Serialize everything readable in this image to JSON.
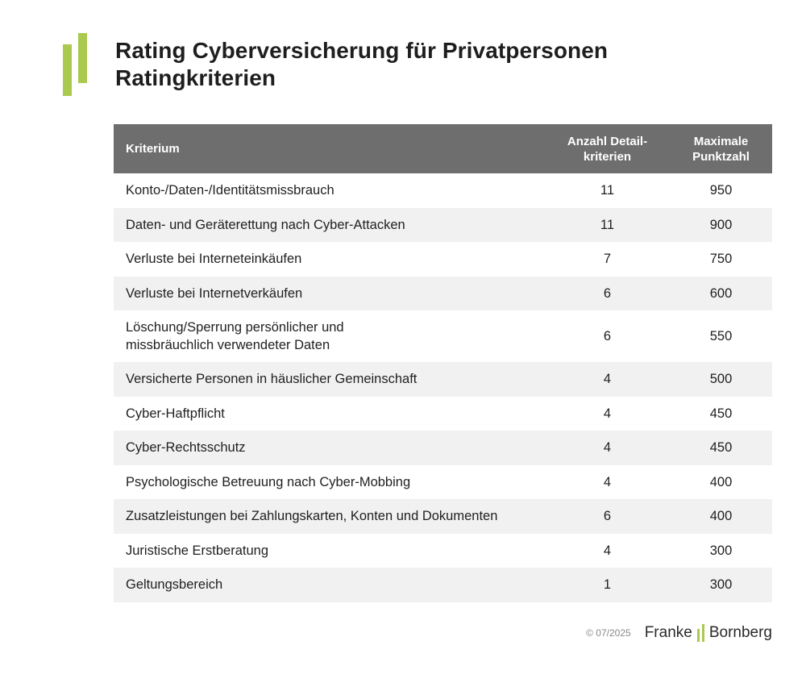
{
  "header": {
    "title_line1": "Rating Cyberversicherung für Privatpersonen",
    "title_line2": "Ratingkriterien",
    "accent_color": "#a9c94f"
  },
  "table": {
    "columns": {
      "criterion": "Kriterium",
      "detail_count_line1": "Anzahl Detail-",
      "detail_count_line2": "kriterien",
      "max_points_line1": "Maximale",
      "max_points_line2": "Punktzahl"
    },
    "header_color": "#6e6e6e",
    "rows": [
      {
        "criterion": "Konto-/Daten-/Identitätsmissbrauch",
        "details": "11",
        "points": "950"
      },
      {
        "criterion": "Daten- und Geräterettung nach Cyber-Attacken",
        "details": "11",
        "points": "900"
      },
      {
        "criterion": "Verluste bei Interneteinkäufen",
        "details": "7",
        "points": "750"
      },
      {
        "criterion": "Verluste bei Internetverkäufen",
        "details": "6",
        "points": "600"
      },
      {
        "criterion_line1": "Löschung/Sperrung persönlicher und",
        "criterion_line2": "missbräuchlich verwendeter Daten",
        "details": "6",
        "points": "550"
      },
      {
        "criterion": "Versicherte Personen in häuslicher Gemeinschaft",
        "details": "4",
        "points": "500"
      },
      {
        "criterion": "Cyber-Haftpflicht",
        "details": "4",
        "points": "450"
      },
      {
        "criterion": "Cyber-Rechtsschutz",
        "details": "4",
        "points": "450"
      },
      {
        "criterion": "Psychologische Betreuung nach Cyber-Mobbing",
        "details": "4",
        "points": "400"
      },
      {
        "criterion": "Zusatzleistungen bei Zahlungskarten, Konten und Dokumenten",
        "details": "6",
        "points": "400"
      },
      {
        "criterion": "Juristische Erstberatung",
        "details": "4",
        "points": "300"
      },
      {
        "criterion": "Geltungsbereich",
        "details": "1",
        "points": "300"
      }
    ]
  },
  "footer": {
    "copyright": "© 07/2025",
    "brand_left": "Franke",
    "brand_right": "Bornberg"
  }
}
